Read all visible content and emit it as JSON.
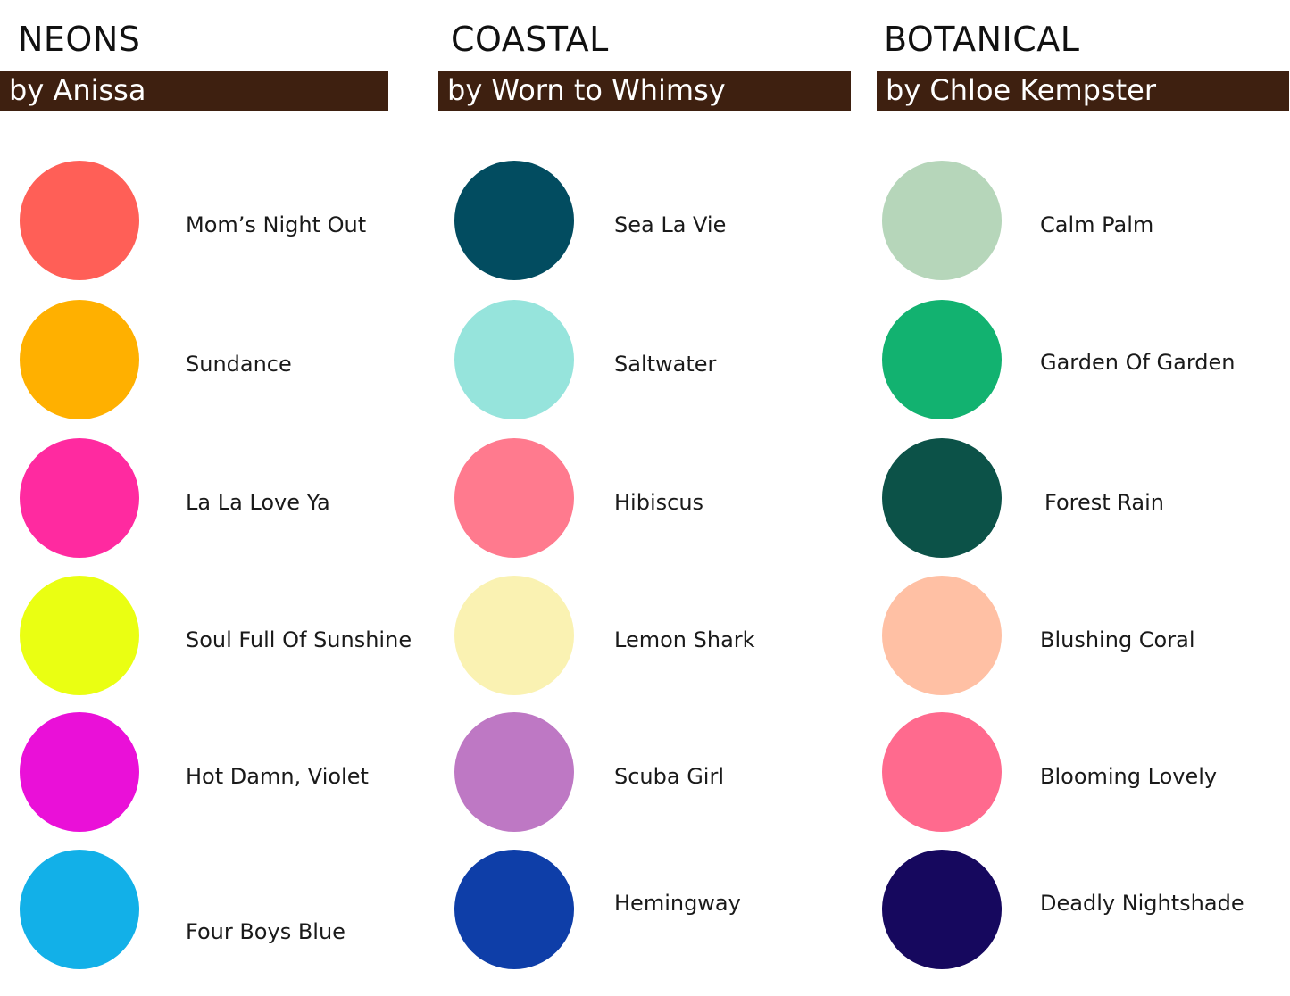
{
  "collections": [
    {
      "title": "NEONS",
      "byline": "by Anissa",
      "colors": [
        {
          "name": "Mom’s Night Out",
          "hex": "#ff5f57"
        },
        {
          "name": "Sundance",
          "hex": "#ffb000"
        },
        {
          "name": "La La Love Ya",
          "hex": "#ff2aa0"
        },
        {
          "name": "Soul Full Of Sunshine",
          "hex": "#eaff12"
        },
        {
          "name": "Hot Damn, Violet",
          "hex": "#ea10d8"
        },
        {
          "name": "Four Boys Blue",
          "hex": "#12b0e8"
        }
      ]
    },
    {
      "title": "COASTAL",
      "byline": "by Worn to Whimsy",
      "colors": [
        {
          "name": "Sea La Vie",
          "hex": "#024c60"
        },
        {
          "name": "Saltwater",
          "hex": "#96e4dc"
        },
        {
          "name": "Hibiscus",
          "hex": "#ff7a8e"
        },
        {
          "name": "Lemon Shark",
          "hex": "#faf2b2"
        },
        {
          "name": "Scuba Girl",
          "hex": "#be78c4"
        },
        {
          "name": "Hemingway",
          "hex": "#0e3ea8"
        }
      ]
    },
    {
      "title": "BOTANICAL",
      "byline": "by Chloe Kempster",
      "colors": [
        {
          "name": "Calm Palm",
          "hex": "#b6d6ba"
        },
        {
          "name": "Garden Of Garden",
          "hex": "#12b270"
        },
        {
          "name": "Forest Rain",
          "hex": "#0c5248"
        },
        {
          "name": "Blushing Coral",
          "hex": "#ffc0a4"
        },
        {
          "name": "Blooming Lovely",
          "hex": "#ff6a8e"
        },
        {
          "name": "Deadly Nightshade",
          "hex": "#16085e"
        }
      ]
    }
  ]
}
